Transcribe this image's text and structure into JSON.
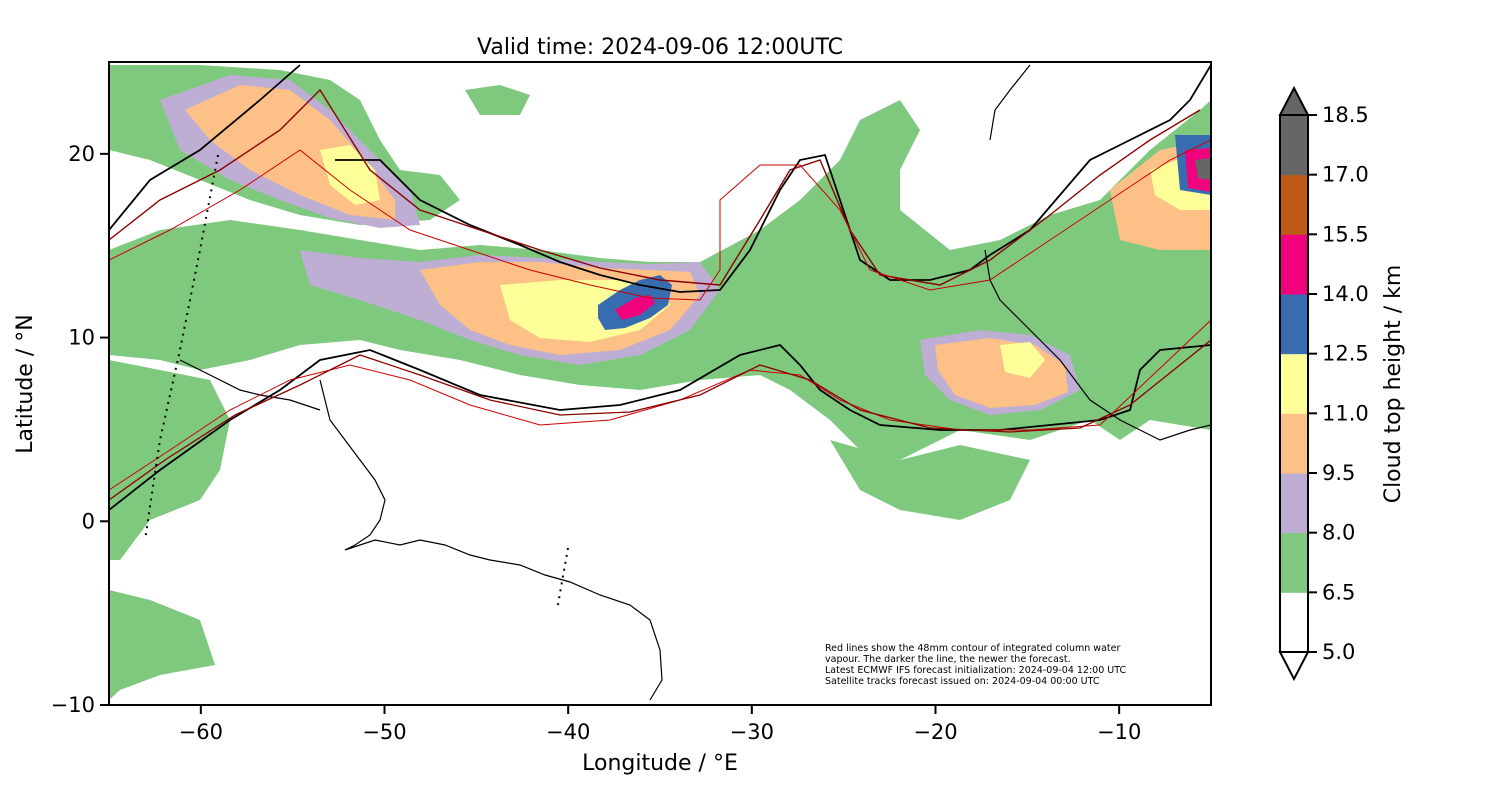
{
  "title": "Valid time: 2024-09-06 12:00UTC",
  "xlabel": "Longitude / °E",
  "ylabel": "Latitude / °N",
  "colorbar_label": "Cloud top height / km",
  "x_ticks": [
    {
      "value": -60,
      "label": "−60"
    },
    {
      "value": -50,
      "label": "−50"
    },
    {
      "value": -40,
      "label": "−40"
    },
    {
      "value": -30,
      "label": "−30"
    },
    {
      "value": -20,
      "label": "−20"
    },
    {
      "value": -10,
      "label": "−10"
    }
  ],
  "y_ticks": [
    {
      "value": -10,
      "label": "−10"
    },
    {
      "value": 0,
      "label": "0"
    },
    {
      "value": 10,
      "label": "10"
    },
    {
      "value": 20,
      "label": "20"
    }
  ],
  "xlim": [
    -65,
    -5
  ],
  "ylim": [
    -10,
    25
  ],
  "colorbar": {
    "levels": [
      "5.0",
      "6.5",
      "8.0",
      "9.5",
      "11.0",
      "12.5",
      "14.0",
      "15.5",
      "17.0",
      "18.5"
    ],
    "colors": [
      "#ffffff",
      "#7fc97f",
      "#beaed4",
      "#fdc086",
      "#ffff99",
      "#386cb0",
      "#f0027f",
      "#bf5b17",
      "#666666"
    ]
  },
  "note_lines": [
    "Red lines show the 48mm contour of integrated column water",
    "vapour. The darker the line, the newer the forecast.",
    "Latest ECMWF IFS forecast initialization: 2024-09-04 12:00 UTC",
    "Satellite tracks forecast issued on: 2024-09-04 00:00 UTC"
  ]
}
